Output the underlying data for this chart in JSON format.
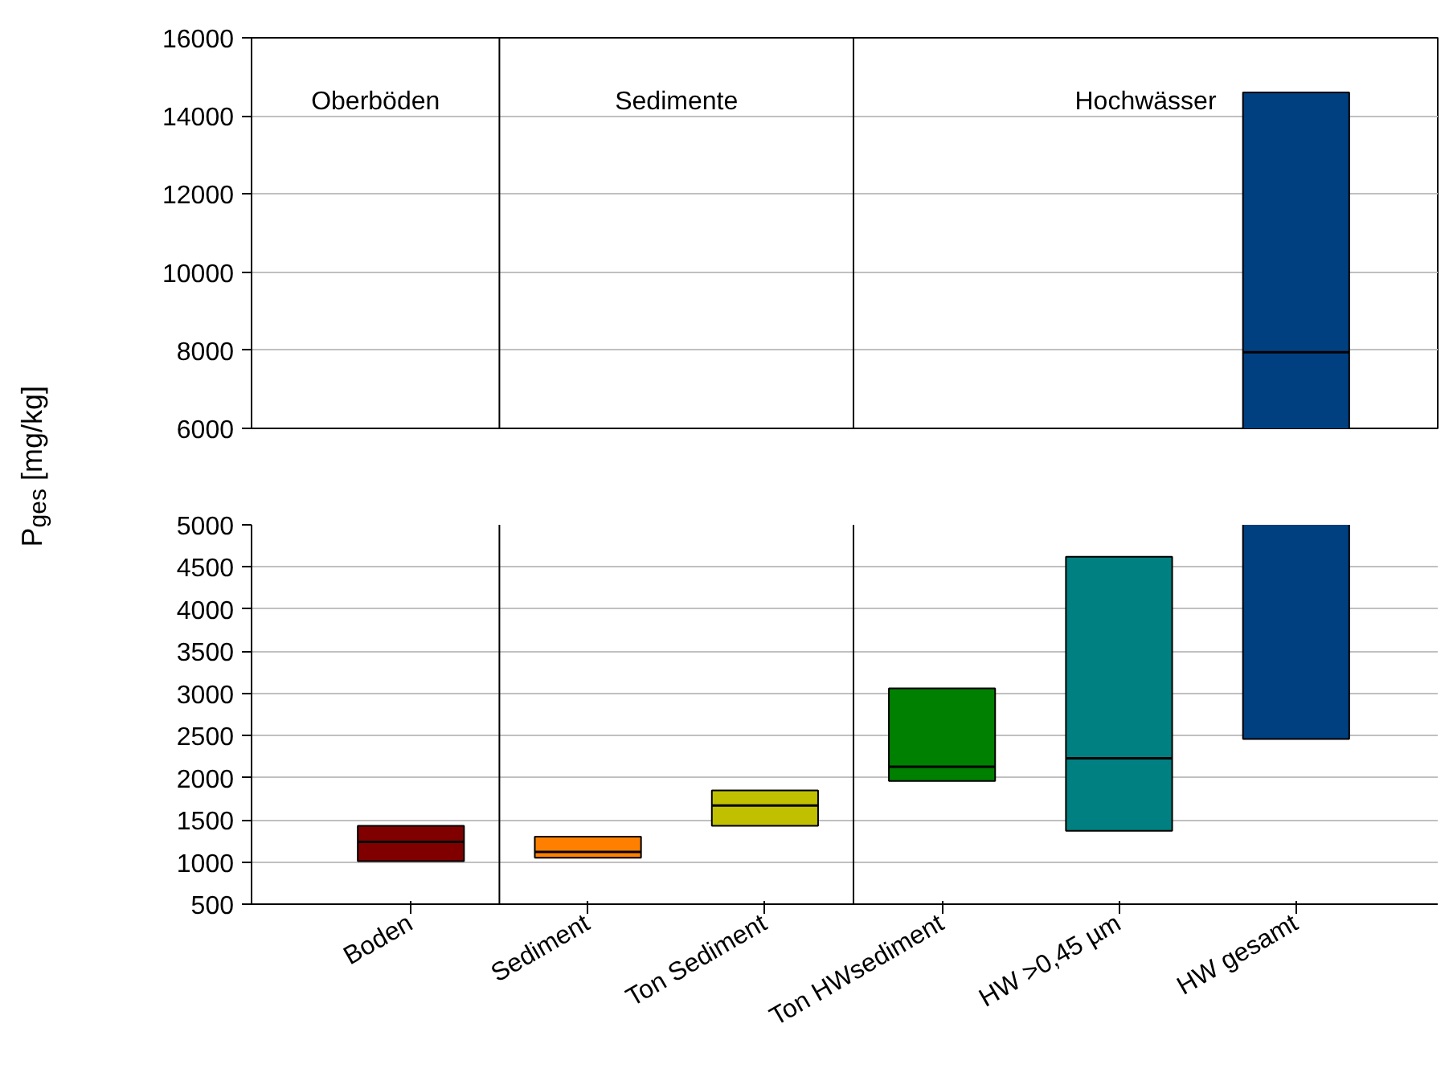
{
  "chart_data": [
    {
      "type": "box",
      "categories": [
        null,
        null,
        null,
        null,
        null,
        null
      ],
      "colors": [
        "#800000",
        "#ff8000",
        "#c0c000",
        "#008000",
        "#008080",
        "#004080"
      ],
      "boxes": [
        null,
        null,
        null,
        null,
        null,
        {
          "low": 2460,
          "q1": 2460,
          "median": 7950,
          "q3": 14600,
          "high": 14600
        }
      ],
      "ylim": [
        6000,
        16000
      ],
      "yticks": [
        6000,
        8000,
        10000,
        12000,
        14000,
        16000
      ],
      "grid": "y",
      "tick_labels": "y",
      "annotations": [
        "Oberböden",
        "Sedimente",
        "Hochwässer"
      ]
    },
    {
      "type": "box",
      "categories": [
        "Boden",
        "Sediment",
        "Ton Sediment",
        "Ton HWsediment",
        "HW >0,45 µm",
        "HW gesamt"
      ],
      "colors": [
        "#800000",
        "#ff8000",
        "#c0c000",
        "#008000",
        "#008080",
        "#004080"
      ],
      "boxes": [
        {
          "low": 1010,
          "q1": 1010,
          "median": 1240,
          "q3": 1430,
          "high": 1430
        },
        {
          "low": 1050,
          "q1": 1050,
          "median": 1120,
          "q3": 1300,
          "high": 1300
        },
        {
          "low": 1430,
          "q1": 1430,
          "median": 1670,
          "q3": 1850,
          "high": 1850
        },
        {
          "low": 1960,
          "q1": 1960,
          "median": 2130,
          "q3": 3060,
          "high": 3060
        },
        {
          "low": 1370,
          "q1": 1370,
          "median": 2230,
          "q3": 4620,
          "high": 4620
        },
        {
          "low": 2460,
          "q1": 2460,
          "median": 7950,
          "q3": 14600,
          "high": 14600
        }
      ],
      "ylabel": "P$_{ges}$ [mg/kg]",
      "ylim": [
        500,
        5000
      ],
      "yticks": [
        500,
        1000,
        1500,
        2000,
        2500,
        3000,
        3500,
        4000,
        4500,
        5000
      ],
      "grid": "y"
    }
  ]
}
